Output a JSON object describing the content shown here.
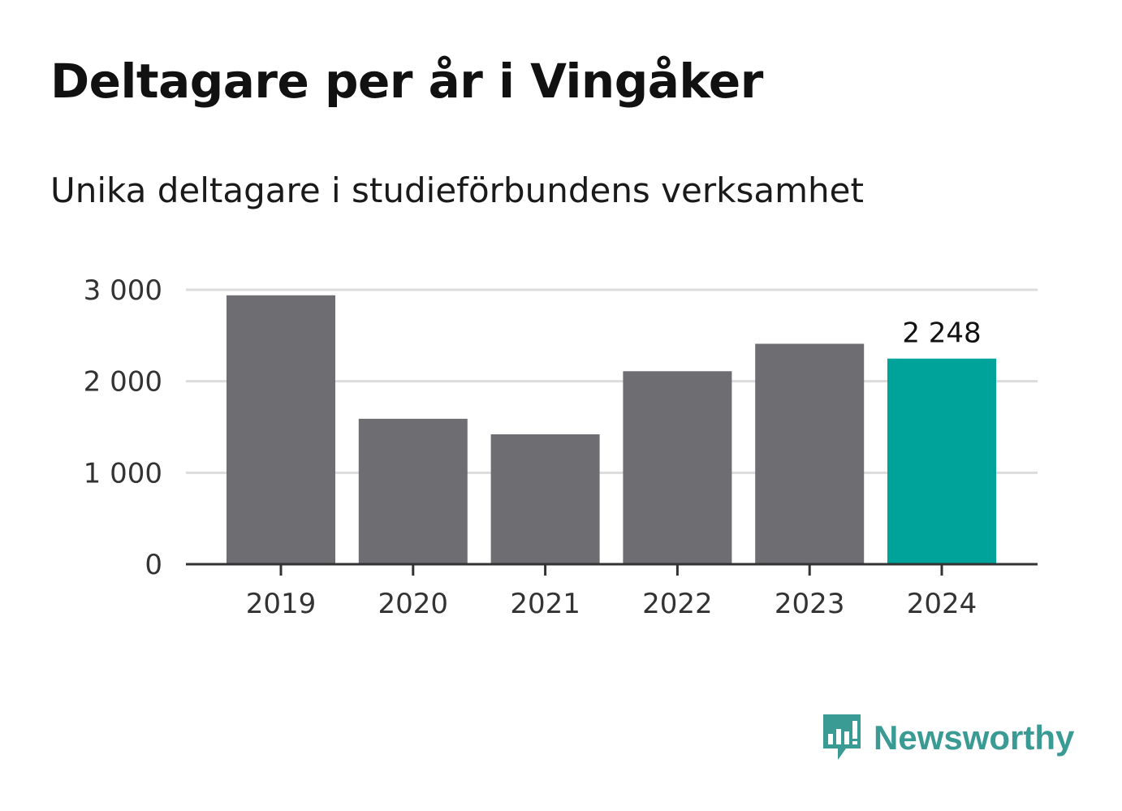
{
  "title": "Deltagare per år i Vingåker",
  "subtitle": "Unika deltagare i studieförbundens verksamhet",
  "brand": {
    "name": "Newsworthy",
    "icon": "newsworthy-logo-icon",
    "color": "#3a9a94"
  },
  "chart_data": {
    "type": "bar",
    "title": "Deltagare per år i Vingåker",
    "subtitle": "Unika deltagare i studieförbundens verksamhet",
    "xlabel": "",
    "ylabel": "",
    "categories": [
      "2019",
      "2020",
      "2021",
      "2022",
      "2023",
      "2024"
    ],
    "values": [
      2940,
      1590,
      1420,
      2110,
      2410,
      2248
    ],
    "ylim": [
      0,
      3000
    ],
    "yticks": [
      0,
      1000,
      2000,
      3000
    ],
    "ytick_labels": [
      "0",
      "1 000",
      "2 000",
      "3 000"
    ],
    "grid": true,
    "bar_color": "#6e6d72",
    "highlight_color": "#00a39a",
    "highlight_index": 5,
    "data_labels": [
      {
        "index": 5,
        "text": "2 248"
      }
    ]
  }
}
